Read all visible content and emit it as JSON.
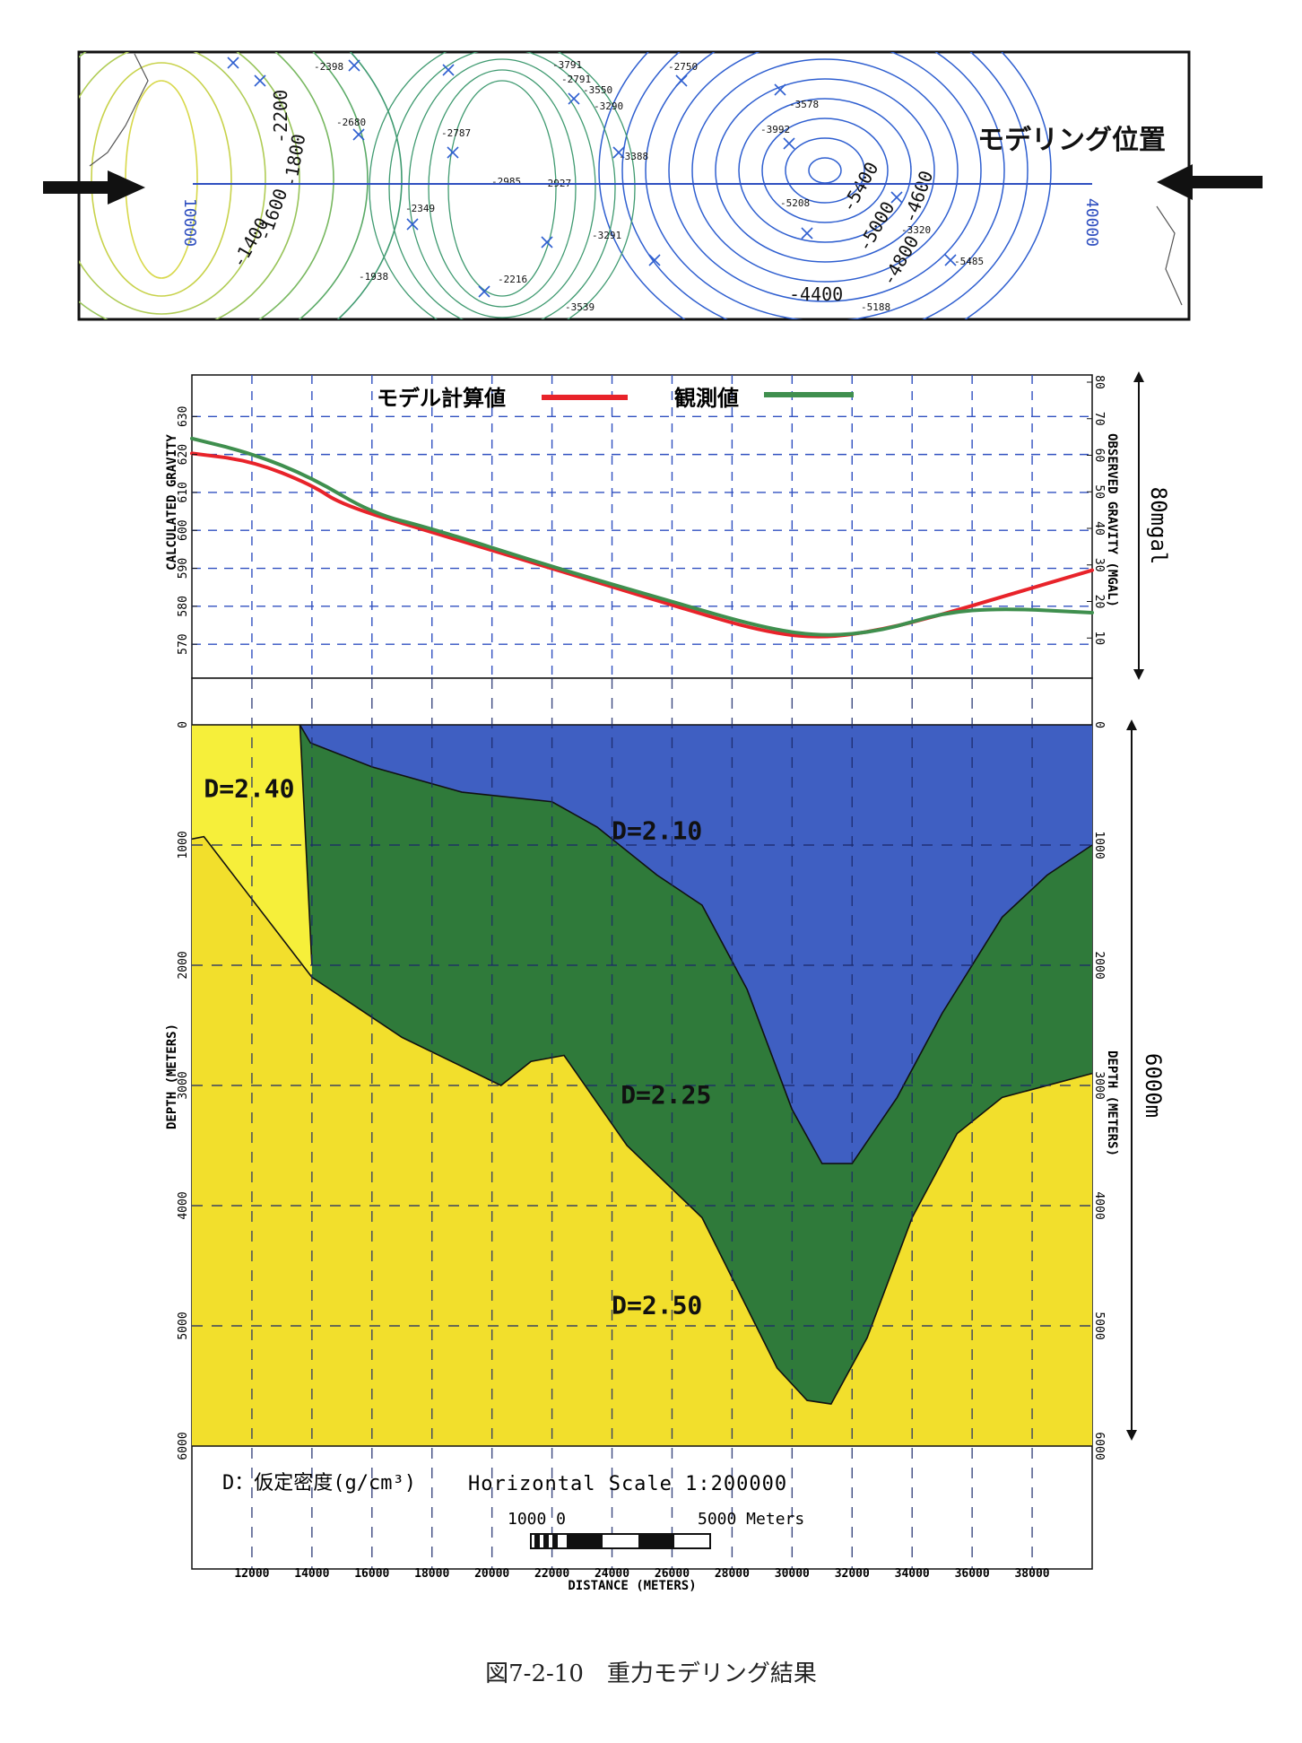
{
  "map": {
    "title": "モデリング位置",
    "axis_left": "10000",
    "axis_right": "40000",
    "contour_labels": [
      "-1400",
      "-1600",
      "-1800",
      "-2200",
      "-4400",
      "-5400",
      "-5000",
      "-4800",
      "-4600"
    ],
    "station_values": [
      "-2398",
      "-2680",
      "-2787",
      "-2349",
      "-1938",
      "-2216",
      "-2985",
      "-2927",
      "-2750",
      "-3291",
      "-3539",
      "-3388",
      "-3578",
      "-3992",
      "-5208",
      "-5188",
      "-5485",
      "-3791",
      "-2791",
      "-3290",
      "-3320",
      "-3550"
    ]
  },
  "chart_data": [
    {
      "type": "line",
      "legend": [
        "モデル計算値",
        "観測値"
      ],
      "legend_placement": "top",
      "series": [
        {
          "name": "モデル計算値",
          "color": "#e8232a",
          "x": [
            10000,
            12000,
            14000,
            15000,
            18000,
            22000,
            26000,
            29000,
            31000,
            33000,
            35000,
            37000,
            40000
          ],
          "y": [
            620.3,
            618.3,
            612.0,
            606.7,
            599.5,
            590.0,
            580.3,
            573.3,
            571.5,
            573.8,
            577.8,
            582.5,
            589.5
          ]
        },
        {
          "name": "観測値",
          "color": "#3f8f4e",
          "x": [
            10000,
            12000,
            14000,
            16000,
            18000,
            22000,
            26000,
            29000,
            31000,
            33000,
            35000,
            37000,
            40000
          ],
          "y": [
            624.2,
            620.3,
            613.9,
            604.5,
            600.5,
            590.4,
            581.2,
            574.4,
            572.0,
            573.5,
            578.3,
            579.5,
            578.3
          ]
        }
      ],
      "left_axis_label": "CALCULATED GRAVITY",
      "left_ticks": [
        "570",
        "580",
        "590",
        "600",
        "610",
        "620",
        "630"
      ],
      "left_range": [
        562,
        640
      ],
      "right_axis_label": "OBSERVED GRAVITY (MGAL)",
      "right_ticks": [
        "10",
        "20",
        "30",
        "40",
        "50",
        "60",
        "70",
        "80"
      ],
      "right_range": [
        0,
        80
      ],
      "side_label": "80mgal",
      "grid": true
    },
    {
      "type": "area",
      "x_ticks": [
        "12000",
        "14000",
        "16000",
        "18000",
        "20000",
        "22000",
        "24000",
        "26000",
        "28000",
        "30000",
        "32000",
        "34000",
        "36000",
        "38000"
      ],
      "xlabel": "DISTANCE (METERS)",
      "x_range": [
        10000,
        40000
      ],
      "ylabel": "DEPTH (METERS)",
      "right_axis_label": "DEPTH (METERS)",
      "y_ticks": [
        "0",
        "1000",
        "2000",
        "3000",
        "4000",
        "5000",
        "6000"
      ],
      "y_range": [
        0,
        6000
      ],
      "side_label": "6000m",
      "layers": [
        {
          "name": "D=2.40",
          "color": "#f6ef3a",
          "label_at": [
            10400,
            600
          ]
        },
        {
          "name": "D=2.10",
          "color": "#3f5fc2",
          "label_at": [
            25500,
            950
          ]
        },
        {
          "name": "D=2.25",
          "color": "#2f7a3a",
          "label_at": [
            25800,
            3150
          ]
        },
        {
          "name": "D=2.50",
          "color": "#f2df2c",
          "label_at": [
            25500,
            4900
          ]
        }
      ],
      "basin_top_boundary": {
        "x": [
          13600,
          13950,
          16000,
          19000,
          22000,
          23500,
          25500,
          27000,
          28500,
          30000,
          31000,
          32000,
          33500,
          35000,
          37000,
          38500,
          40000
        ],
        "y": [
          0,
          150,
          350,
          560,
          640,
          850,
          1250,
          1500,
          2200,
          3200,
          3650,
          3650,
          3100,
          2400,
          1600,
          1250,
          1000
        ]
      },
      "basin_bottom_boundary": {
        "x": [
          10000,
          10400,
          12000,
          14000,
          17000,
          20300,
          21300,
          22400,
          24500,
          27000,
          28500,
          29500,
          30500,
          31300,
          32500,
          34000,
          35500,
          37000,
          40000
        ],
        "y": [
          950,
          930,
          1450,
          2100,
          2600,
          3000,
          2800,
          2750,
          3500,
          4100,
          4850,
          5350,
          5620,
          5650,
          5100,
          4100,
          3400,
          3100,
          2900
        ]
      },
      "d240_right_boundary": {
        "x": [
          13600,
          14000
        ],
        "y": [
          0,
          2000
        ]
      },
      "scale_text": "Horizontal Scale 1:200000",
      "scale_bar_labels": {
        "left": "1000 0",
        "right": "5000 Meters"
      },
      "density_note": "D：仮定密度(g/cm³)"
    }
  ],
  "caption": "図7-2-10　重力モデリング結果"
}
